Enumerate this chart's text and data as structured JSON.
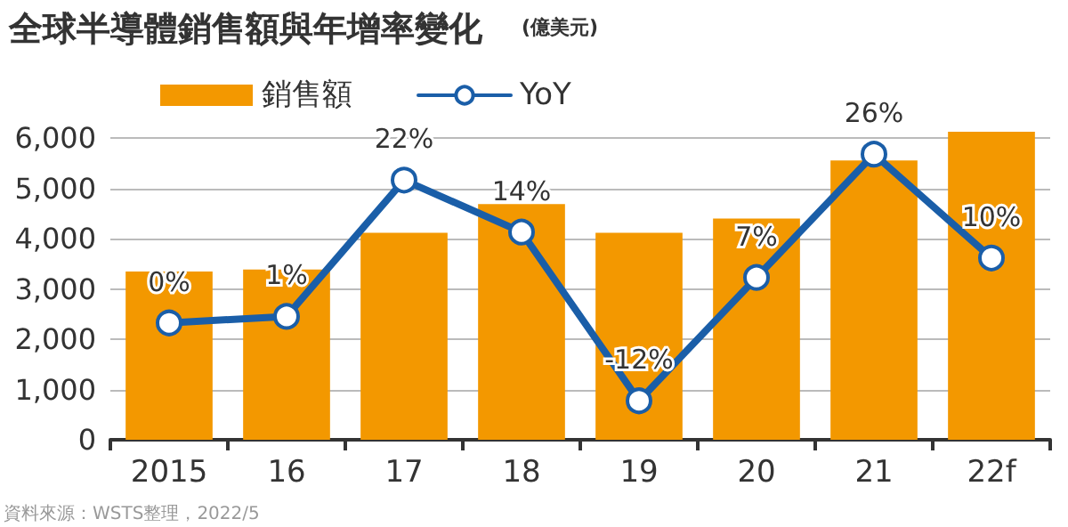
{
  "chart_data": {
    "type": "bar",
    "title": "全球半導體銷售額與年增率變化",
    "subtitle": "(億美元)",
    "categories": [
      "2015",
      "16",
      "17",
      "18",
      "19",
      "20",
      "21",
      "22f"
    ],
    "series": [
      {
        "name": "銷售額",
        "color": "#f39800",
        "values": [
          3350,
          3390,
          4120,
          4690,
          4120,
          4400,
          5560,
          6130
        ]
      },
      {
        "name": "YoY",
        "type": "line",
        "axis": "y2",
        "color": "#1a5ea8",
        "values": [
          0,
          1,
          22,
          14,
          -12,
          7,
          26,
          10
        ],
        "value_labels": [
          "0%",
          "1%",
          "22%",
          "14%",
          "-12%",
          "7%",
          "26%",
          "10%"
        ]
      }
    ],
    "ylim": [
      0,
      6200
    ],
    "yticks": [
      0,
      {
        "value": 1000,
        "label": "1,000"
      },
      {
        "value": 2000,
        "label": "2,000"
      },
      {
        "value": 3000,
        "label": "3,000"
      },
      {
        "value": 4000,
        "label": "4,000"
      },
      {
        "value": 5000,
        "label": "5,000"
      },
      {
        "value": 6000,
        "label": "6,000"
      }
    ],
    "y2lim": [
      -18,
      30
    ],
    "grid": "y",
    "legend": "top",
    "marker": "circle",
    "line_style": "solid",
    "annotations": [
      "資料來源：WSTS整理，2022/5"
    ]
  }
}
